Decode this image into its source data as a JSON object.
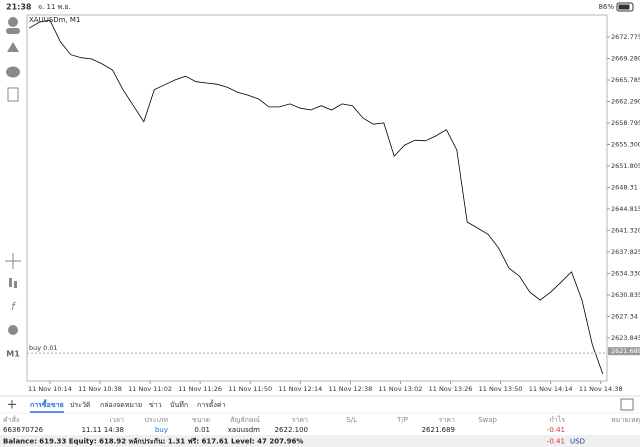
{
  "status_bar": {
    "time": "21:38",
    "date": "จ. 11 พ.ย.",
    "battery": "86%"
  },
  "toolbar": {
    "timeframe": "M1"
  },
  "chart_data": {
    "type": "line",
    "title": "XAUUSDm, M1",
    "color": "#000000",
    "x": [
      604,
      609,
      614,
      619,
      624,
      629,
      634,
      639,
      644,
      649,
      654,
      659,
      664,
      669,
      674,
      679,
      684,
      689,
      694,
      699,
      704,
      709,
      714,
      719,
      724,
      729,
      734,
      739,
      744,
      749,
      754,
      759,
      764,
      769,
      774,
      779,
      784,
      789,
      794,
      799,
      804,
      809,
      814,
      819,
      824,
      829,
      834,
      839,
      844,
      849,
      854,
      859,
      864,
      869,
      874,
      879
    ],
    "values": [
      2674.2,
      2675.2,
      2675.5,
      2672.0,
      2669.9,
      2669.4,
      2669.2,
      2668.4,
      2667.4,
      2664.2,
      2661.6,
      2659.0,
      2664.2,
      2665.0,
      2665.8,
      2666.4,
      2665.5,
      2665.3,
      2665.1,
      2664.6,
      2663.8,
      2663.3,
      2662.7,
      2661.4,
      2661.4,
      2661.9,
      2661.2,
      2660.9,
      2661.6,
      2660.9,
      2661.9,
      2661.6,
      2659.6,
      2658.6,
      2658.8,
      2653.4,
      2655.2,
      2656.0,
      2655.9,
      2656.7,
      2657.7,
      2654.4,
      2642.7,
      2641.7,
      2640.7,
      2638.5,
      2635.2,
      2633.9,
      2631.3,
      2630.0,
      2631.3,
      2632.9,
      2634.6,
      2630.0,
      2622.7,
      2618.0
    ],
    "xlim": [
      603,
      881
    ],
    "xticks": [
      {
        "value": 614,
        "label": "11 Nov 10:14"
      },
      {
        "value": 638,
        "label": "11 Nov 10:38"
      },
      {
        "value": 662,
        "label": "11 Nov 11:02"
      },
      {
        "value": 686,
        "label": "11 Nov 11:26"
      },
      {
        "value": 710,
        "label": "11 Nov 11:50"
      },
      {
        "value": 734,
        "label": "11 Nov 12:14"
      },
      {
        "value": 758,
        "label": "11 Nov 12:38"
      },
      {
        "value": 782,
        "label": "11 Nov 13:02"
      },
      {
        "value": 806,
        "label": "11 Nov 13:26"
      },
      {
        "value": 830,
        "label": "11 Nov 13:50"
      },
      {
        "value": 854,
        "label": "11 Nov 14:14"
      },
      {
        "value": 878,
        "label": "11 Nov 14:38"
      }
    ],
    "ylim": [
      2616.84,
      2676.35
    ],
    "yticks": [
      2672.775,
      {
        "value": 2669.28,
        "label": "2669.280"
      },
      2665.785,
      {
        "value": 2662.29,
        "label": "2662.290"
      },
      2658.795,
      {
        "value": 2655.3,
        "label": "2655.300"
      },
      2651.805,
      2648.31,
      2644.815,
      {
        "value": 2641.32,
        "label": "2641.320"
      },
      2637.825,
      {
        "value": 2634.33,
        "label": "2634.330"
      },
      2630.835,
      2627.34,
      2623.845
    ],
    "current_price": 2621.689,
    "order_label": "buy 0.01"
  },
  "tabs": [
    "การซื้อขาย",
    "ประวัติ",
    "กล่องจดหมาย",
    "ข่าว",
    "บันทึก",
    "การตั้งค่า"
  ],
  "table": {
    "headers": [
      "คำสั่ง",
      "เวลา",
      "ประเภท",
      "ขนาด",
      "สัญลักษณ์",
      "ราคา",
      "S/L",
      "T/P",
      "ราคา",
      "Swap",
      "กำไร",
      "หมายเหตุ"
    ],
    "row": {
      "order": "663670726",
      "time": "11.11 14:38",
      "type": "buy",
      "volume": "0.01",
      "symbol": "xauusdm",
      "price": "2622.100",
      "current_price": "2621.689",
      "profit": "-0.41"
    }
  },
  "balance": {
    "text": "Balance: 619.33 Equity: 618.92 หลักประกัน: 1.31 ฟรี: 617.61 Level: 47 207.96%",
    "total": "-0.41",
    "currency": "USD"
  }
}
